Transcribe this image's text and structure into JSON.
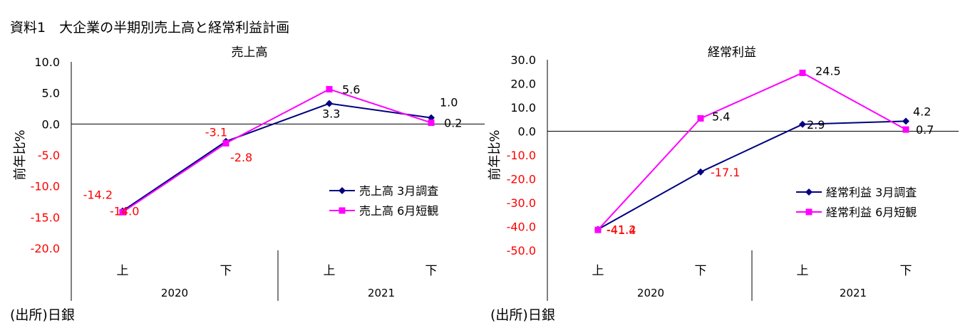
{
  "title": "資料1　大企業の半期別売上高と経常利益計画",
  "source_left": "(出所)日銀",
  "source_right": "(出所)日銀",
  "chart_data": [
    {
      "type": "line",
      "title": "売上高",
      "ylabel": "前年比%",
      "ylim": [
        -20,
        10
      ],
      "ytick_step": 5,
      "yticks": [
        "10.0",
        "5.0",
        "0.0",
        "-5.0",
        "-10.0",
        "-15.0",
        "-20.0"
      ],
      "categories": [
        "上",
        "下",
        "上",
        "下"
      ],
      "groups": [
        "2020",
        "2021"
      ],
      "series": [
        {
          "name": "売上高 3月調査",
          "color": "#000080",
          "marker": "diamond",
          "values": [
            -14.0,
            -2.8,
            3.3,
            1.0
          ],
          "labels": [
            "-14.0",
            "-2.8",
            "3.3",
            "1.0"
          ],
          "label_colors": [
            "#ff0000",
            "#ff0000",
            "#000000",
            "#000000"
          ]
        },
        {
          "name": "売上高 6月短観",
          "color": "#ff00ff",
          "marker": "square",
          "values": [
            -14.2,
            -3.1,
            5.6,
            0.2
          ],
          "labels": [
            "-14.2",
            "-3.1",
            "5.6",
            "0.2"
          ],
          "label_colors": [
            "#ff0000",
            "#ff0000",
            "#000000",
            "#000000"
          ]
        }
      ]
    },
    {
      "type": "line",
      "title": "経常利益",
      "ylabel": "前年比%",
      "ylim": [
        -50,
        30
      ],
      "ytick_step": 10,
      "yticks": [
        "30.0",
        "20.0",
        "10.0",
        "0.0",
        "-10.0",
        "-20.0",
        "-30.0",
        "-40.0",
        "-50.0"
      ],
      "categories": [
        "上",
        "下",
        "上",
        "下"
      ],
      "groups": [
        "2020",
        "2021"
      ],
      "series": [
        {
          "name": "経常利益 3月調査",
          "color": "#000080",
          "marker": "diamond",
          "values": [
            -41.2,
            -17.1,
            2.9,
            4.2
          ],
          "labels": [
            "-41.2",
            "-17.1",
            "2.9",
            "4.2"
          ],
          "label_colors": [
            "#ff0000",
            "#ff0000",
            "#000000",
            "#000000"
          ]
        },
        {
          "name": "経常利益 6月短観",
          "color": "#ff00ff",
          "marker": "square",
          "values": [
            -41.4,
            5.4,
            24.5,
            0.7
          ],
          "labels": [
            "-41.4",
            "5.4",
            "24.5",
            "0.7"
          ],
          "label_colors": [
            "#ff0000",
            "#000000",
            "#000000",
            "#000000"
          ]
        }
      ]
    }
  ]
}
